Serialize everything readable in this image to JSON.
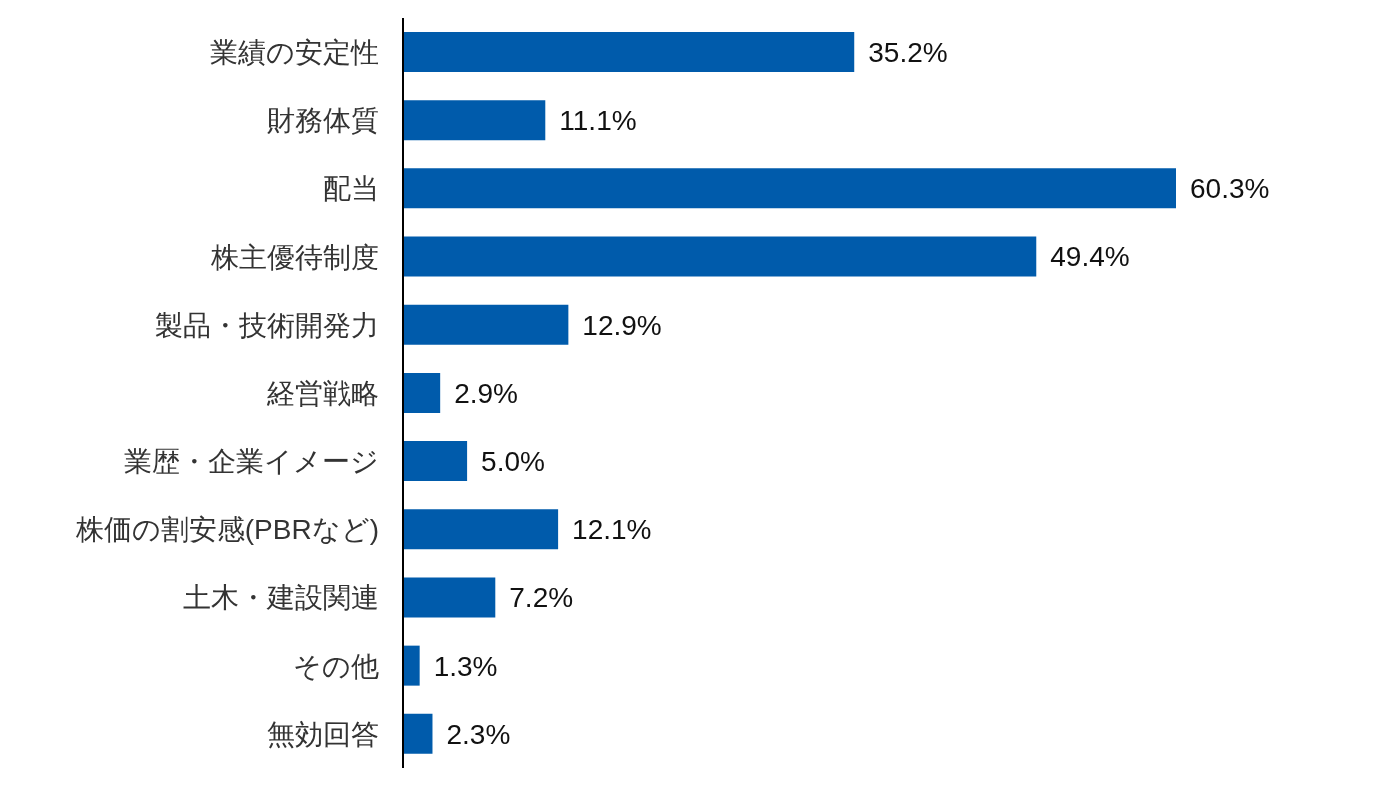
{
  "chart_data": {
    "type": "bar",
    "orientation": "horizontal",
    "categories": [
      "業績の安定性",
      "財務体質",
      "配当",
      "株主優待制度",
      "製品・技術開発力",
      "経営戦略",
      "業歴・企業イメージ",
      "株価の割安感(PBRなど)",
      "土木・建設関連",
      "その他",
      "無効回答"
    ],
    "values": [
      35.2,
      11.1,
      60.3,
      49.4,
      12.9,
      2.9,
      5.0,
      12.1,
      7.2,
      1.3,
      2.3
    ],
    "value_labels": [
      "35.2%",
      "11.1%",
      "60.3%",
      "49.4%",
      "12.9%",
      "2.9%",
      "5.0%",
      "12.1%",
      "7.2%",
      "1.3%",
      "2.3%"
    ],
    "color": "#005bab",
    "grid": false,
    "legend": false
  }
}
